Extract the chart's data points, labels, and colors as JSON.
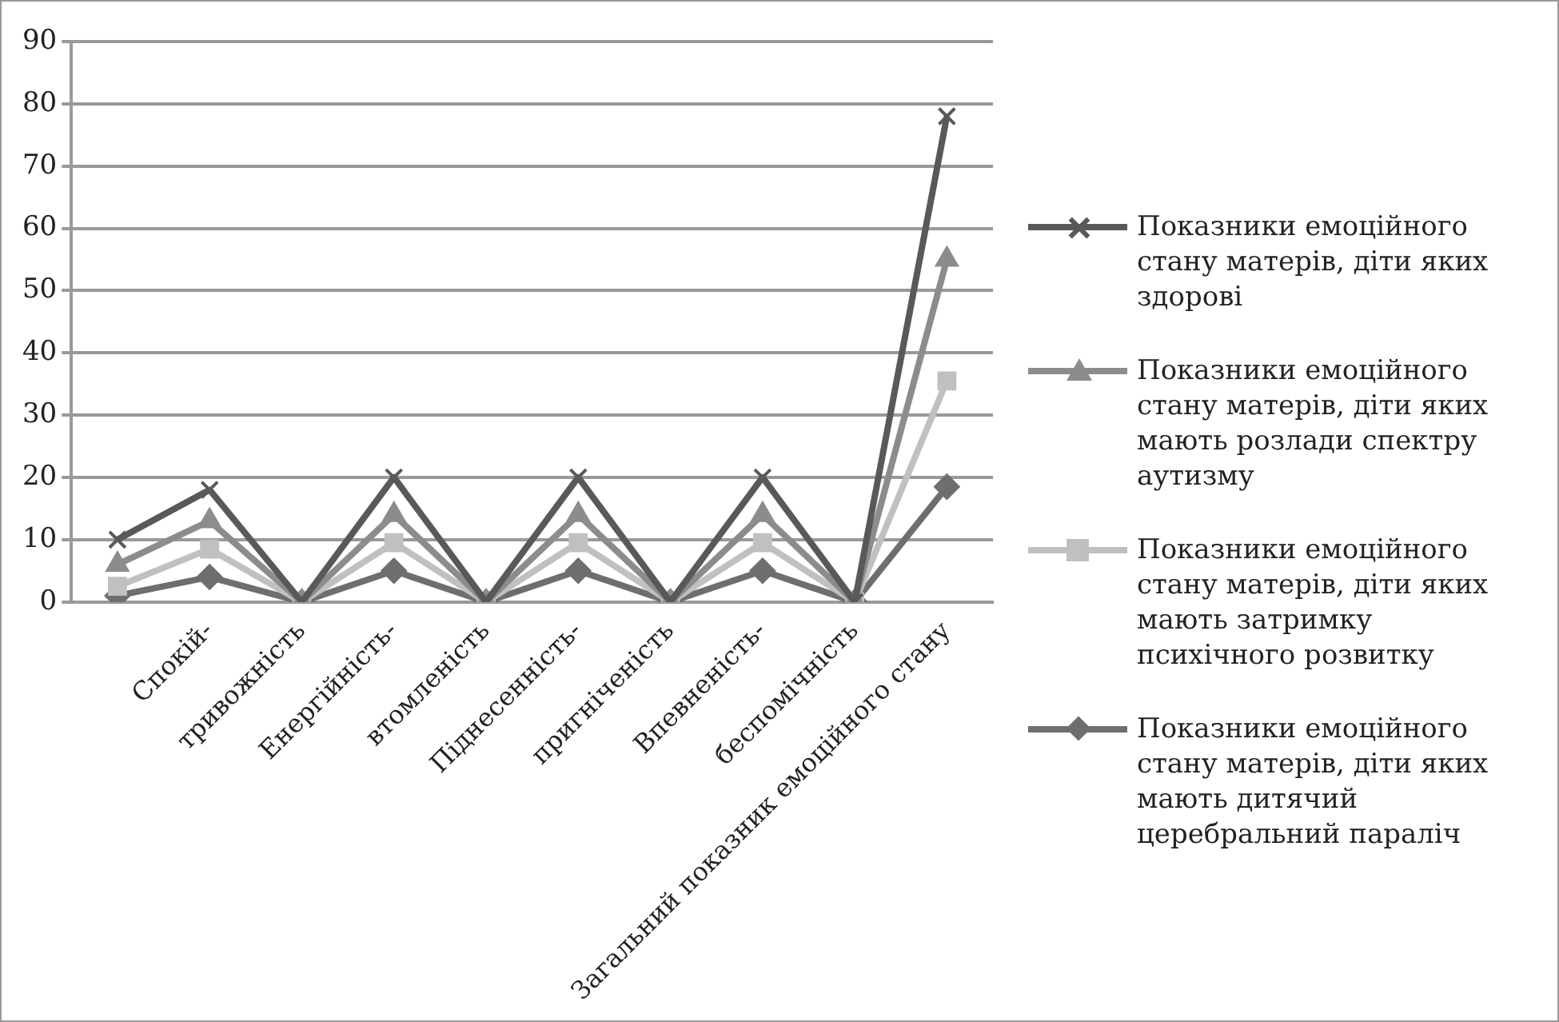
{
  "chart_data": {
    "type": "line",
    "categories": [
      null,
      "Спокій-",
      "тривожність",
      "Енергійність-",
      "втомленість",
      "Піднесенність-",
      "пригніченість",
      "Впевненість-",
      "беспомічність",
      "Загальний показник емоційного стану"
    ],
    "series": [
      {
        "name": "Показники емоційного стану матерів, діти яких здорові",
        "color": "#595959",
        "marker": "cross",
        "values": [
          10,
          18,
          0,
          20,
          0,
          20,
          0,
          20,
          0,
          78
        ]
      },
      {
        "name": "Показники емоційного стану матерів, діти яких мають розлади спектру аутизму",
        "color": "#8c8c8c",
        "marker": "triangle",
        "values": [
          6,
          13,
          0,
          14,
          0,
          14,
          0,
          14,
          0,
          55
        ]
      },
      {
        "name": "Показники емоційного стану матерів, діти яких мають затримку психічного розвитку",
        "color": "#c0c0c0",
        "marker": "square",
        "values": [
          2.5,
          8.5,
          0,
          9.5,
          0,
          9.5,
          0,
          9.5,
          0,
          35.5
        ]
      },
      {
        "name": "Показники емоційного стану матерів, діти яких мають дитячий церебральний параліч",
        "color": "#6e6e6e",
        "marker": "diamond",
        "values": [
          1,
          4,
          0,
          5,
          0,
          5,
          0,
          5,
          0,
          18.5
        ]
      }
    ],
    "ylim": [
      0,
      90
    ],
    "yticks": [
      0,
      10,
      20,
      30,
      40,
      50,
      60,
      70,
      80,
      90
    ],
    "grid": "y",
    "legend": "right"
  }
}
